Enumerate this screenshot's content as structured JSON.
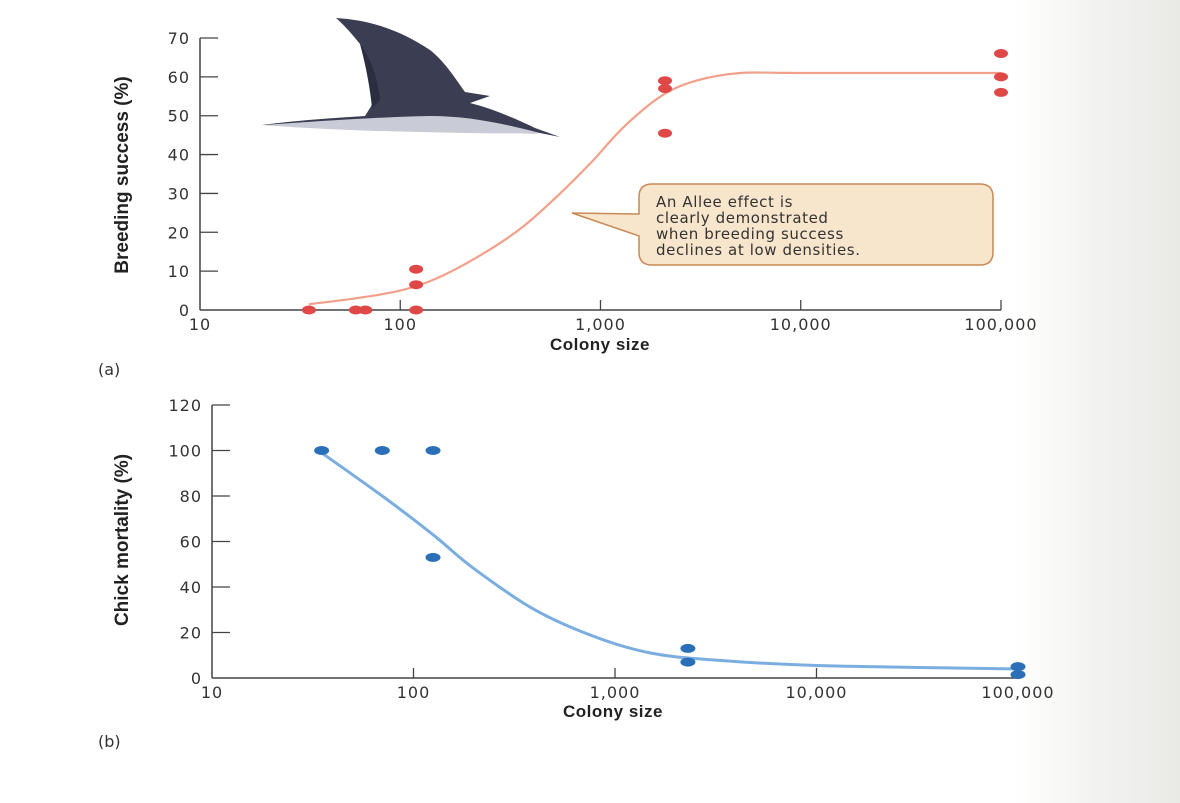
{
  "chart_data": [
    {
      "type": "scatter",
      "panel_label": "(a)",
      "title": "",
      "xlabel": "Colony size",
      "ylabel": "Breeding success (%)",
      "xscale": "log",
      "xlim": [
        10,
        100000
      ],
      "ylim": [
        0,
        70
      ],
      "x_ticks": [
        "10",
        "100",
        "1,000",
        "10,000",
        "100,000"
      ],
      "y_ticks": [
        "0",
        "10",
        "20",
        "30",
        "40",
        "50",
        "60",
        "70"
      ],
      "grid": false,
      "marker_color": "#e04848",
      "curve_color": "#f2a08a",
      "points": [
        {
          "x": 35,
          "y": 0
        },
        {
          "x": 60,
          "y": 0
        },
        {
          "x": 67,
          "y": 0
        },
        {
          "x": 120,
          "y": 0
        },
        {
          "x": 120,
          "y": 6.5
        },
        {
          "x": 120,
          "y": 10.5
        },
        {
          "x": 2100,
          "y": 45.5
        },
        {
          "x": 2100,
          "y": 57
        },
        {
          "x": 2100,
          "y": 59
        },
        {
          "x": 100000,
          "y": 56
        },
        {
          "x": 100000,
          "y": 60
        },
        {
          "x": 100000,
          "y": 66
        }
      ],
      "fit_curve": [
        {
          "x": 35,
          "y": 1.5
        },
        {
          "x": 60,
          "y": 3
        },
        {
          "x": 100,
          "y": 5
        },
        {
          "x": 150,
          "y": 8
        },
        {
          "x": 250,
          "y": 14
        },
        {
          "x": 400,
          "y": 21
        },
        {
          "x": 600,
          "y": 29
        },
        {
          "x": 900,
          "y": 38
        },
        {
          "x": 1300,
          "y": 47
        },
        {
          "x": 2000,
          "y": 55
        },
        {
          "x": 3000,
          "y": 59
        },
        {
          "x": 5000,
          "y": 61
        },
        {
          "x": 10000,
          "y": 61
        },
        {
          "x": 100000,
          "y": 61
        }
      ],
      "annotation": {
        "lines": [
          "An Allee effect is",
          "clearly demonstrated",
          "when breeding success",
          "declines at low densities."
        ],
        "points_to": {
          "x": 900,
          "y": 25
        },
        "fill": "#f7e5cc",
        "stroke": "#c98a55"
      },
      "illustration": "seabird-in-flight"
    },
    {
      "type": "scatter",
      "panel_label": "(b)",
      "title": "",
      "xlabel": "Colony size",
      "ylabel": "Chick mortality (%)",
      "xscale": "log",
      "xlim": [
        10,
        100000
      ],
      "ylim": [
        0,
        120
      ],
      "x_ticks": [
        "10",
        "100",
        "1,000",
        "10,000",
        "100,000"
      ],
      "y_ticks": [
        "0",
        "20",
        "40",
        "60",
        "80",
        "100",
        "120"
      ],
      "grid": false,
      "marker_color": "#2a6fb8",
      "curve_color": "#7aaee0",
      "points": [
        {
          "x": 35,
          "y": 100
        },
        {
          "x": 70,
          "y": 100
        },
        {
          "x": 125,
          "y": 100
        },
        {
          "x": 125,
          "y": 53
        },
        {
          "x": 2300,
          "y": 13
        },
        {
          "x": 2300,
          "y": 7
        },
        {
          "x": 100000,
          "y": 5
        },
        {
          "x": 100000,
          "y": 1.5
        }
      ],
      "fit_curve": [
        {
          "x": 35,
          "y": 99
        },
        {
          "x": 70,
          "y": 80
        },
        {
          "x": 125,
          "y": 63
        },
        {
          "x": 200,
          "y": 48
        },
        {
          "x": 400,
          "y": 30
        },
        {
          "x": 800,
          "y": 18
        },
        {
          "x": 1500,
          "y": 11
        },
        {
          "x": 3000,
          "y": 8
        },
        {
          "x": 10000,
          "y": 5.5
        },
        {
          "x": 100000,
          "y": 4
        }
      ]
    }
  ]
}
